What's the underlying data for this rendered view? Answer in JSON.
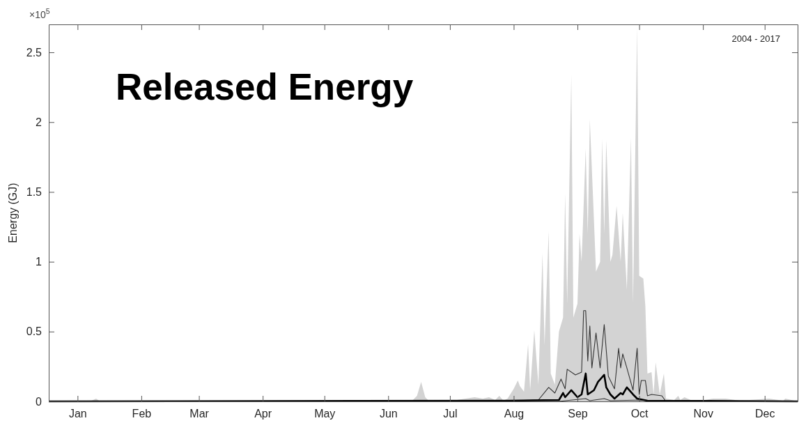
{
  "chart_data": {
    "type": "area",
    "title": "Released Energy",
    "ylabel": "Energy (GJ)",
    "annotations": [
      "×10$^{5}$",
      "2004 - 2017"
    ],
    "xlim": [
      "--01-01",
      "--12-31"
    ],
    "xticks": [
      {
        "value": "--01-15",
        "label": "Jan"
      },
      {
        "value": "--02-15",
        "label": "Feb"
      },
      {
        "value": "--03-15",
        "label": "Mar"
      },
      {
        "value": "--04-15",
        "label": "Apr"
      },
      {
        "value": "--05-15",
        "label": "May"
      },
      {
        "value": "--06-15",
        "label": "Jun"
      },
      {
        "value": "--07-15",
        "label": "Jul"
      },
      {
        "value": "--08-15",
        "label": "Aug"
      },
      {
        "value": "--09-15",
        "label": "Sep"
      },
      {
        "value": "--10-15",
        "label": "Oct"
      },
      {
        "value": "--11-15",
        "label": "Nov"
      },
      {
        "value": "--12-15",
        "label": "Dec"
      }
    ],
    "ylim": [
      0,
      2.7
    ],
    "yticks": [
      0,
      0.5,
      1,
      1.5,
      2,
      2.5
    ],
    "grid": false,
    "series": [
      {
        "color": "#d3d3d3",
        "x": [
          "--01-01",
          "--01-21",
          "--01-24",
          "--01-26",
          "--06-23",
          "--06-27",
          "--06-29",
          "--07-01",
          "--07-03",
          "--07-05",
          "--07-14",
          "--07-27",
          "--07-31",
          "--08-03",
          "--08-06",
          "--08-08",
          "--08-10",
          "--08-12",
          "--08-15",
          "--08-17",
          "--08-18",
          "--08-20",
          "--08-22",
          "--08-23",
          "--08-25",
          "--08-27",
          "--08-29",
          "--08-30",
          "--09-01",
          "--09-02",
          "--09-04",
          "--09-06",
          "--09-08",
          "--09-09",
          "--09-10",
          "--09-12",
          "--09-13",
          "--09-15",
          "--09-16",
          "--09-17",
          "--09-19",
          "--09-20",
          "--09-21",
          "--09-23",
          "--09-24",
          "--09-26",
          "--09-27",
          "--09-28",
          "--09-29",
          "--10-01",
          "--10-02",
          "--10-04",
          "--10-06",
          "--10-07",
          "--10-09",
          "--10-11",
          "--10-12",
          "--10-14",
          "--10-15",
          "--10-17",
          "--10-18",
          "--10-19",
          "--10-21",
          "--10-22",
          "--10-23",
          "--10-25",
          "--10-27",
          "--10-28",
          "--11-01",
          "--11-03",
          "--11-04",
          "--11-06",
          "--11-09",
          "--11-16",
          "--11-20",
          "--11-26",
          "--12-03",
          "--12-17",
          "--12-24",
          "--12-25",
          "--12-31"
        ],
        "values": [
          0,
          0,
          0.02,
          0,
          0,
          0.01,
          0.04,
          0.14,
          0.03,
          0,
          0,
          0.03,
          0.02,
          0.03,
          0.01,
          0.04,
          0.005,
          0.02,
          0.09,
          0.15,
          0.11,
          0.07,
          0.41,
          0.08,
          0.51,
          0.12,
          1.06,
          0.4,
          1.22,
          0.2,
          0.12,
          0.5,
          0.6,
          1.49,
          0.7,
          2.34,
          0.6,
          0.7,
          1.2,
          1.0,
          1.81,
          1.2,
          2.02,
          1.3,
          0.93,
          1.0,
          1.88,
          1.2,
          1.87,
          1.0,
          1.05,
          1.4,
          1.0,
          1.35,
          0.8,
          1.89,
          0.7,
          2.68,
          0.9,
          0.88,
          0.68,
          0.2,
          0.21,
          0.05,
          0.28,
          0.05,
          0.2,
          0.02,
          0.01,
          0.04,
          0.01,
          0.03,
          0.01,
          0.01,
          0.02,
          0.02,
          0.005,
          0.02,
          0.005,
          0.02,
          0
        ]
      },
      {
        "type": "line",
        "color": "#333333",
        "x": [
          "--01-01",
          "--08-10",
          "--08-20",
          "--08-27",
          "--09-01",
          "--09-04",
          "--09-07",
          "--09-09",
          "--09-10",
          "--09-14",
          "--09-17",
          "--09-18",
          "--09-19",
          "--09-20",
          "--09-21",
          "--09-22",
          "--09-24",
          "--09-26",
          "--09-28",
          "--09-30",
          "--10-03",
          "--10-05",
          "--10-06",
          "--10-07",
          "--10-09",
          "--10-12",
          "--10-14",
          "--10-15",
          "--10-16",
          "--10-18",
          "--10-19",
          "--10-21",
          "--10-26",
          "--10-28",
          "--12-31"
        ],
        "values": [
          0,
          0,
          0.007,
          0.01,
          0.1,
          0.06,
          0.16,
          0.09,
          0.23,
          0.19,
          0.21,
          0.65,
          0.65,
          0.29,
          0.54,
          0.24,
          0.49,
          0.24,
          0.55,
          0.18,
          0.09,
          0.38,
          0.24,
          0.34,
          0.24,
          0.08,
          0.38,
          0.05,
          0.15,
          0.15,
          0.04,
          0.05,
          0.04,
          0,
          0
        ]
      },
      {
        "type": "line",
        "color": "#333333",
        "x": [
          "--01-01",
          "--09-06",
          "--09-19",
          "--09-21",
          "--09-28",
          "--10-01",
          "--10-17",
          "--10-20",
          "--12-31"
        ],
        "values": [
          0,
          0,
          0.02,
          0.005,
          0.02,
          0.005,
          0.01,
          0,
          0
        ]
      },
      {
        "type": "line",
        "color": "#000000",
        "x": [
          "--01-01",
          "--08-13",
          "--09-06",
          "--09-08",
          "--09-09",
          "--09-12",
          "--09-15",
          "--09-17",
          "--09-19",
          "--09-20",
          "--09-23",
          "--09-25",
          "--09-28",
          "--09-29",
          "--10-01",
          "--10-03",
          "--10-06",
          "--10-07",
          "--10-09",
          "--10-12",
          "--10-14",
          "--10-19",
          "--12-31"
        ],
        "values": [
          0,
          0.005,
          0.01,
          0.06,
          0.03,
          0.08,
          0.03,
          0.05,
          0.2,
          0.05,
          0.08,
          0.14,
          0.19,
          0.1,
          0.05,
          0.02,
          0.06,
          0.05,
          0.1,
          0.05,
          0.02,
          0.005,
          0
        ]
      }
    ]
  }
}
